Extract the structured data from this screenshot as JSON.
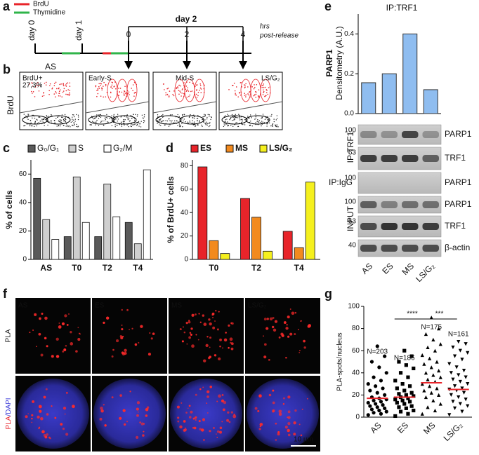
{
  "panel_labels": [
    "a",
    "b",
    "c",
    "d",
    "e",
    "f",
    "g"
  ],
  "timeline": {
    "legend": [
      {
        "name": "BrdU",
        "color": "#e8242a"
      },
      {
        "name": "Thymidine",
        "color": "#2fb44a"
      }
    ],
    "day_labels": [
      "day 0",
      "day 1",
      "day 2"
    ],
    "hour_ticks": [
      "0",
      "2",
      "4"
    ],
    "unit": [
      "hrs",
      "post-release"
    ]
  },
  "flow": {
    "title": "AS",
    "y_label": "BrdU",
    "gate_label": "BrdU+",
    "gate_percent": "27,3%",
    "gates": [
      "Early-S",
      "Mid-S",
      "LS/G₂"
    ]
  },
  "chart_data": [
    {
      "type": "bar",
      "ylabel": "% of cells",
      "categories": [
        "AS",
        "T0",
        "T2",
        "T4"
      ],
      "series": [
        {
          "name": "G₀/G₁",
          "color": "#5a5a5a",
          "values": [
            57,
            16,
            16,
            26
          ]
        },
        {
          "name": "S",
          "color": "#cfcfcf",
          "values": [
            28,
            58,
            53,
            11
          ]
        },
        {
          "name": "G₂/M",
          "color": "#ffffff",
          "values": [
            14,
            26,
            30,
            63
          ]
        }
      ],
      "ylim": [
        0,
        70
      ],
      "yticks": [
        0,
        20,
        40,
        60
      ]
    },
    {
      "type": "bar",
      "ylabel": "% of BrdU+ cells",
      "categories": [
        "T0",
        "T2",
        "T4"
      ],
      "series": [
        {
          "name": "ES",
          "color": "#e8242a",
          "values": [
            79,
            52,
            24
          ]
        },
        {
          "name": "MS",
          "color": "#f28a1e",
          "values": [
            16,
            36,
            10
          ]
        },
        {
          "name": "LS/G₂",
          "color": "#f5f01e",
          "values": [
            5,
            7,
            66
          ]
        }
      ],
      "ylim": [
        0,
        85
      ],
      "yticks": [
        0,
        20,
        40,
        60,
        80
      ]
    },
    {
      "type": "bar",
      "title": "IP:TRF1",
      "ylabel": [
        "PARP1",
        "Densitometry (A.U.)"
      ],
      "categories": [
        "AS",
        "ES",
        "MS",
        "LS/G₂"
      ],
      "values": [
        0.155,
        0.2,
        0.4,
        0.12
      ],
      "color": "#8fbdf0",
      "ylim": [
        0,
        0.5
      ],
      "yticks": [
        {
          "value": 0,
          "label": "0.0"
        },
        0.2,
        0.4
      ]
    },
    {
      "type": "strip",
      "ylabel": "PLA-spots/nucleus",
      "categories": [
        "AS",
        "ES",
        "MS",
        "LS/G₂"
      ],
      "values": [
        [
          2,
          3,
          4,
          5,
          6,
          7,
          8,
          9,
          10,
          11,
          12,
          13,
          14,
          15,
          16,
          17,
          18,
          20,
          22,
          24,
          26,
          28,
          30,
          33,
          36,
          40,
          45,
          50,
          55,
          64
        ],
        [
          1,
          3,
          5,
          6,
          8,
          9,
          10,
          12,
          13,
          14,
          15,
          16,
          17,
          18,
          19,
          20,
          21,
          22,
          24,
          26,
          28,
          30,
          33,
          36,
          40,
          44,
          47,
          50,
          55,
          60
        ],
        [
          3,
          6,
          9,
          12,
          15,
          18,
          20,
          22,
          24,
          26,
          28,
          30,
          32,
          34,
          36,
          38,
          40,
          42,
          45,
          48,
          50,
          53,
          56,
          60,
          63,
          66,
          70,
          75,
          80,
          90
        ],
        [
          2,
          5,
          8,
          10,
          12,
          14,
          16,
          18,
          20,
          22,
          24,
          25,
          26,
          28,
          30,
          32,
          34,
          36,
          38,
          40,
          42,
          45,
          48,
          52,
          55,
          58,
          60,
          63,
          66,
          68
        ]
      ],
      "means": [
        17,
        18,
        31,
        25
      ],
      "mean_color": "#e8242a",
      "annotations": [
        "N=203",
        "N=186",
        "N=175",
        "N=161"
      ],
      "significance": [
        "****",
        "***"
      ],
      "ylim": [
        0,
        100
      ],
      "yticks": [
        0,
        20,
        40,
        60,
        80,
        100
      ]
    }
  ],
  "blot": {
    "groups": [
      "IP:TRF1",
      "IP:IgG",
      "INPUT"
    ],
    "rows": [
      {
        "mw": "100",
        "label": "PARP1"
      },
      {
        "mw": "63",
        "label": "TRF1"
      },
      {
        "mw": "100",
        "label": "PARP1"
      },
      {
        "mw": "100",
        "label": "PARP1"
      },
      {
        "mw": "63",
        "label": "TRF1"
      },
      {
        "mw": "40",
        "label": "β-actin"
      }
    ]
  },
  "microscopy": {
    "conditions": [
      "AS",
      "ES",
      "MS",
      "LS/G₂"
    ],
    "row_pla": "PLA",
    "row_merged": [
      "PLA",
      "/DAPI"
    ],
    "scale_bar": "10 µm"
  }
}
